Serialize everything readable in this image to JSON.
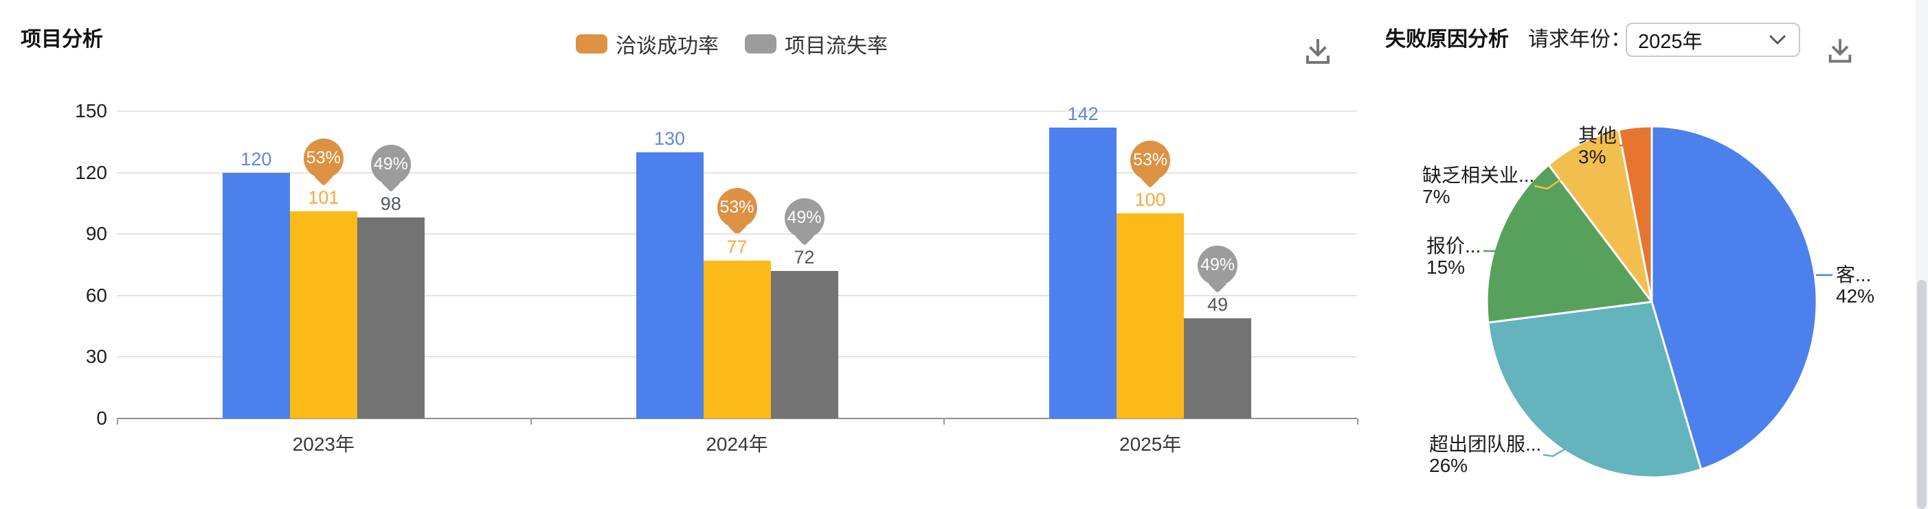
{
  "bar_panel": {
    "title": "项目分析",
    "legend": [
      {
        "label": "洽谈成功率",
        "color": "#DD9243"
      },
      {
        "label": "项目流失率",
        "color": "#9C9C9C"
      }
    ],
    "download_icon": {
      "name": "download-icon",
      "color": "#757575"
    }
  },
  "pie_panel": {
    "title": "失败原因分析",
    "year_label": "请求年份：",
    "year_select": {
      "value": "2025年",
      "chevron_icon": "chevron-down-icon"
    },
    "download_icon": {
      "name": "download-icon",
      "color": "#757575"
    }
  },
  "chart_data": [
    {
      "type": "bar",
      "title": "项目分析",
      "categories": [
        "2023年",
        "2024年",
        "2025年"
      ],
      "series": [
        {
          "name": "",
          "color": "#4C80EC",
          "label_color": "#6285DE",
          "values": [
            120,
            130,
            142
          ]
        },
        {
          "name": "洽谈成功率",
          "color": "#FBBA17",
          "label_color": "#F8A93B",
          "values": [
            101,
            77,
            100
          ],
          "markers": {
            "color": "#DD9243",
            "labels": [
              "53%",
              "53%",
              "53%"
            ]
          }
        },
        {
          "name": "项目流失率",
          "color": "#737373",
          "label_color": "#51575F",
          "values": [
            98,
            72,
            49
          ],
          "markers": {
            "color": "#9C9C9C",
            "labels": [
              "49%",
              "49%",
              "49%"
            ]
          }
        }
      ],
      "xlabel": "",
      "ylabel": "",
      "ylim": [
        0,
        150
      ],
      "yticks": [
        0,
        30,
        60,
        90,
        120,
        150
      ],
      "grid": true,
      "legend_position": "top-center"
    },
    {
      "type": "pie",
      "title": "失败原因分析",
      "order": "clockwise-from-top",
      "slices": [
        {
          "label": "客...",
          "pct": "42%",
          "value": 42,
          "color": "#4C80EC"
        },
        {
          "label": "超出团队服...",
          "pct": "26%",
          "value": 26,
          "color": "#63B4BC"
        },
        {
          "label": "报价...",
          "pct": "15%",
          "value": 15,
          "color": "#57A15C"
        },
        {
          "label": "缺乏相关业...",
          "pct": "7%",
          "value": 7,
          "color": "#F2BF4E"
        },
        {
          "label": "其他",
          "pct": "3%",
          "value": 3,
          "color": "#E5752F"
        }
      ]
    }
  ]
}
